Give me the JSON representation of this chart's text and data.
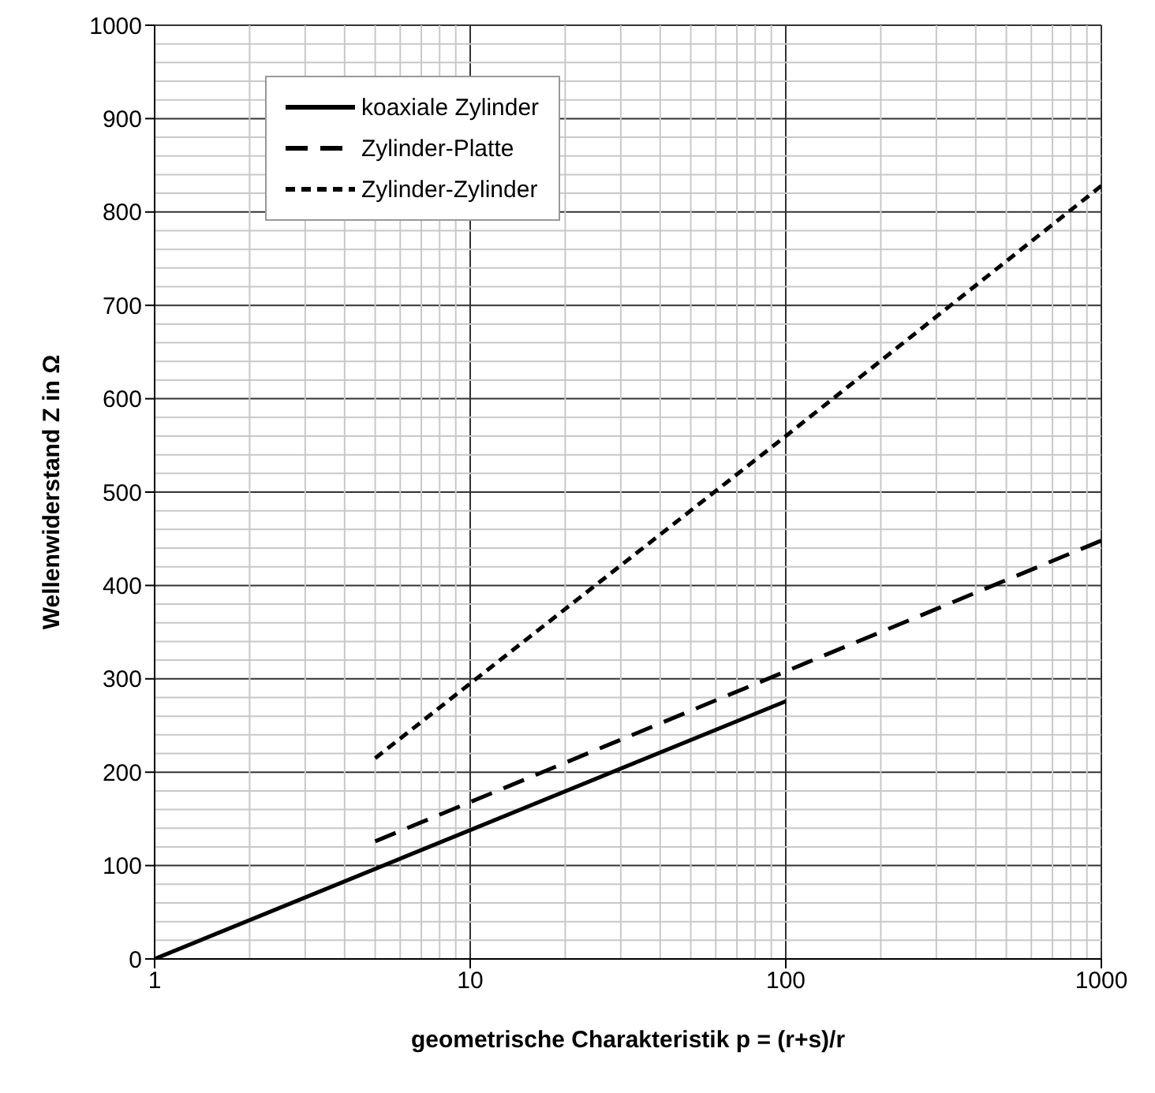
{
  "chart_data": {
    "type": "line",
    "xlabel": "geometrische Charakteristik p = (r+s)/r",
    "ylabel": "Wellenwiderstand Z in Ω",
    "log": "x",
    "xlim": [
      1,
      1000
    ],
    "xticks": [
      1,
      10,
      100,
      1000
    ],
    "ylim": [
      0,
      1000
    ],
    "yticks": [
      0,
      100,
      200,
      300,
      400,
      500,
      600,
      700,
      800,
      900,
      1000
    ],
    "grid": true,
    "legend": "top left",
    "marker": "none",
    "series": [
      {
        "name": "koaxiale Zylinder",
        "color": "#000000",
        "line_style": "solid",
        "x": [
          1,
          10,
          100
        ],
        "values": [
          0,
          138,
          276
        ]
      },
      {
        "name": "Zylinder-Platte",
        "color": "#000000",
        "line_style": "dashed",
        "x": [
          5,
          10,
          100,
          1000
        ],
        "values": [
          126,
          168,
          308,
          448
        ]
      },
      {
        "name": "Zylinder-Zylinder",
        "color": "#000000",
        "line_style": "dotted",
        "x": [
          5,
          10,
          100,
          1000
        ],
        "values": [
          215,
          295,
          560,
          828
        ]
      }
    ]
  }
}
